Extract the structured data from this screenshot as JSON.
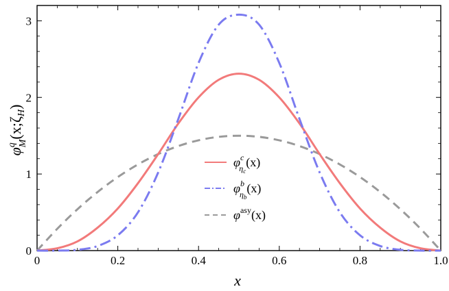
{
  "chart_data": {
    "type": "line",
    "title": "",
    "xlabel": "x",
    "ylabel_parts": {
      "base": "φ",
      "sup": "q",
      "sub": "M",
      "args": "(x;ζ",
      "arg_sub": "H",
      "close": ")"
    },
    "xlim": [
      0,
      1
    ],
    "ylim": [
      0,
      3.2
    ],
    "x_ticks": [
      "0",
      "0.2",
      "0.4",
      "0.6",
      "0.8",
      "1.0"
    ],
    "x_tick_values": [
      0,
      0.2,
      0.4,
      0.6,
      0.8,
      1.0
    ],
    "y_ticks": [
      "0",
      "1",
      "2",
      "3"
    ],
    "y_tick_values": [
      0,
      1,
      2,
      3
    ],
    "grid": false,
    "legend_position": "center",
    "x": [
      0,
      0.05,
      0.1,
      0.15,
      0.2,
      0.25,
      0.3,
      0.35,
      0.4,
      0.45,
      0.5,
      0.55,
      0.6,
      0.65,
      0.7,
      0.75,
      0.8,
      0.85,
      0.9,
      0.95,
      1.0
    ],
    "series": [
      {
        "key": "etac",
        "legend": {
          "base": "φ",
          "sup": "c",
          "sub": "η",
          "subsub": "c",
          "args": "(x)"
        },
        "color": "#f27a7a",
        "dash": "solid",
        "values": [
          0,
          0.03,
          0.12,
          0.3,
          0.55,
          0.88,
          1.26,
          1.66,
          2.0,
          2.23,
          2.31,
          2.23,
          2.0,
          1.66,
          1.26,
          0.88,
          0.55,
          0.3,
          0.12,
          0.03,
          0
        ]
      },
      {
        "key": "etab",
        "legend": {
          "base": "φ",
          "sup": "b",
          "sub": "η",
          "subsub": "b",
          "args": "(x)"
        },
        "color": "#7b7bf0",
        "dash": "dashdot",
        "values": [
          0,
          0,
          0.01,
          0.06,
          0.2,
          0.5,
          1.02,
          1.72,
          2.45,
          2.95,
          3.08,
          2.95,
          2.45,
          1.72,
          1.02,
          0.5,
          0.2,
          0.06,
          0.01,
          0,
          0
        ]
      },
      {
        "key": "asy",
        "legend": {
          "base": "φ",
          "sup": "asy",
          "sub": "",
          "subsub": "",
          "args": "(x)"
        },
        "color": "#9a9a9a",
        "dash": "dashed",
        "values": [
          0,
          0.285,
          0.54,
          0.765,
          0.96,
          1.125,
          1.26,
          1.365,
          1.44,
          1.485,
          1.5,
          1.485,
          1.44,
          1.365,
          1.26,
          1.125,
          0.96,
          0.765,
          0.54,
          0.285,
          0
        ]
      }
    ]
  }
}
